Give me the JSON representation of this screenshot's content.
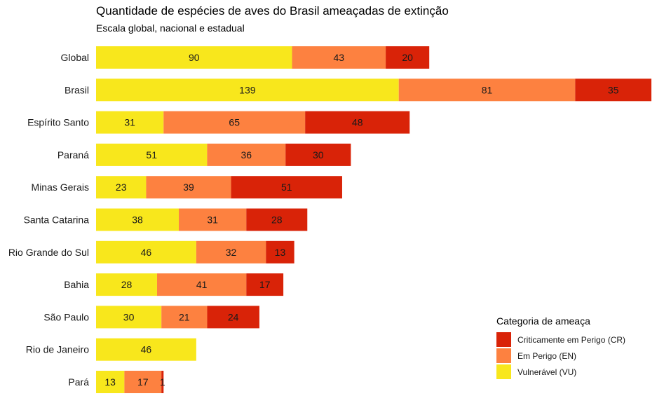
{
  "chart_data": {
    "type": "bar",
    "orientation": "horizontal",
    "stacked": true,
    "title": "Quantidade de espécies de aves do Brasil ameaçadas de extinção",
    "subtitle": "Escala global, nacional e estadual",
    "categories": [
      "Global",
      "Brasil",
      "Espírito Santo",
      "Paraná",
      "Minas Gerais",
      "Santa Catarina",
      "Rio Grande do Sul",
      "Bahia",
      "São Paulo",
      "Rio de Janeiro",
      "Pará"
    ],
    "series": [
      {
        "name": "Vulnerável (VU)",
        "color": "#f8e71c",
        "values": [
          90,
          139,
          31,
          51,
          23,
          38,
          46,
          28,
          30,
          46,
          13
        ]
      },
      {
        "name": "Em Perigo (EN)",
        "color": "#fd8140",
        "values": [
          43,
          81,
          65,
          36,
          39,
          31,
          32,
          41,
          21,
          0,
          17
        ]
      },
      {
        "name": "Criticamente em Perigo (CR)",
        "color": "#d92308",
        "values": [
          20,
          35,
          48,
          30,
          51,
          28,
          13,
          17,
          24,
          0,
          1
        ]
      }
    ],
    "xlim": [
      0,
      255
    ],
    "grid": false,
    "legend": {
      "title": "Categoria de ameaça",
      "position": "bottom-right",
      "order": [
        "Criticamente em Perigo (CR)",
        "Em Perigo (EN)",
        "Vulnerável (VU)"
      ]
    }
  }
}
